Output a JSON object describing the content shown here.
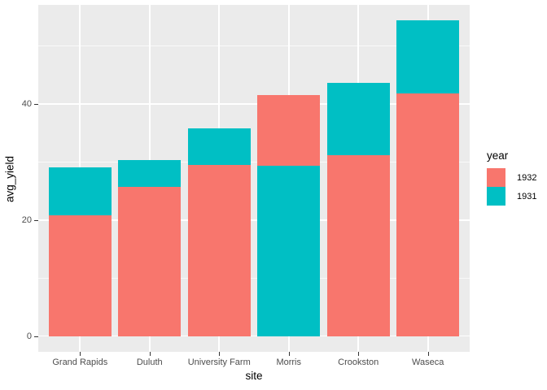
{
  "chart_data": {
    "type": "bar",
    "position": "identity-overlaid",
    "title": "",
    "xlabel": "site",
    "ylabel": "avg_yield",
    "categories": [
      "Grand Rapids",
      "Duluth",
      "University Farm",
      "Morris",
      "Crookston",
      "Waseca"
    ],
    "series": [
      {
        "name": "1932",
        "color": "#F8766D",
        "values": [
          20.81,
          25.7,
          29.51,
          41.51,
          31.18,
          41.87
        ]
      },
      {
        "name": "1931",
        "color": "#00BFC4",
        "values": [
          29.05,
          30.29,
          35.83,
          29.29,
          43.66,
          54.35
        ]
      }
    ],
    "y_major_ticks": [
      0,
      20,
      40
    ],
    "y_minor_gridlines": [
      10,
      30,
      50
    ],
    "ylim": [
      -2.72,
      57.07
    ],
    "grid": true,
    "legend": {
      "title": "year",
      "position": "right",
      "entries": [
        "1932",
        "1931"
      ]
    }
  },
  "style": {
    "panel_background": "#EBEBEB",
    "gridline_color": "#FFFFFF",
    "tick_label_color": "#4D4D4D",
    "axis_title_color": "#000000",
    "series_colors": {
      "1932": "#F8766D",
      "1931": "#00BFC4"
    }
  }
}
